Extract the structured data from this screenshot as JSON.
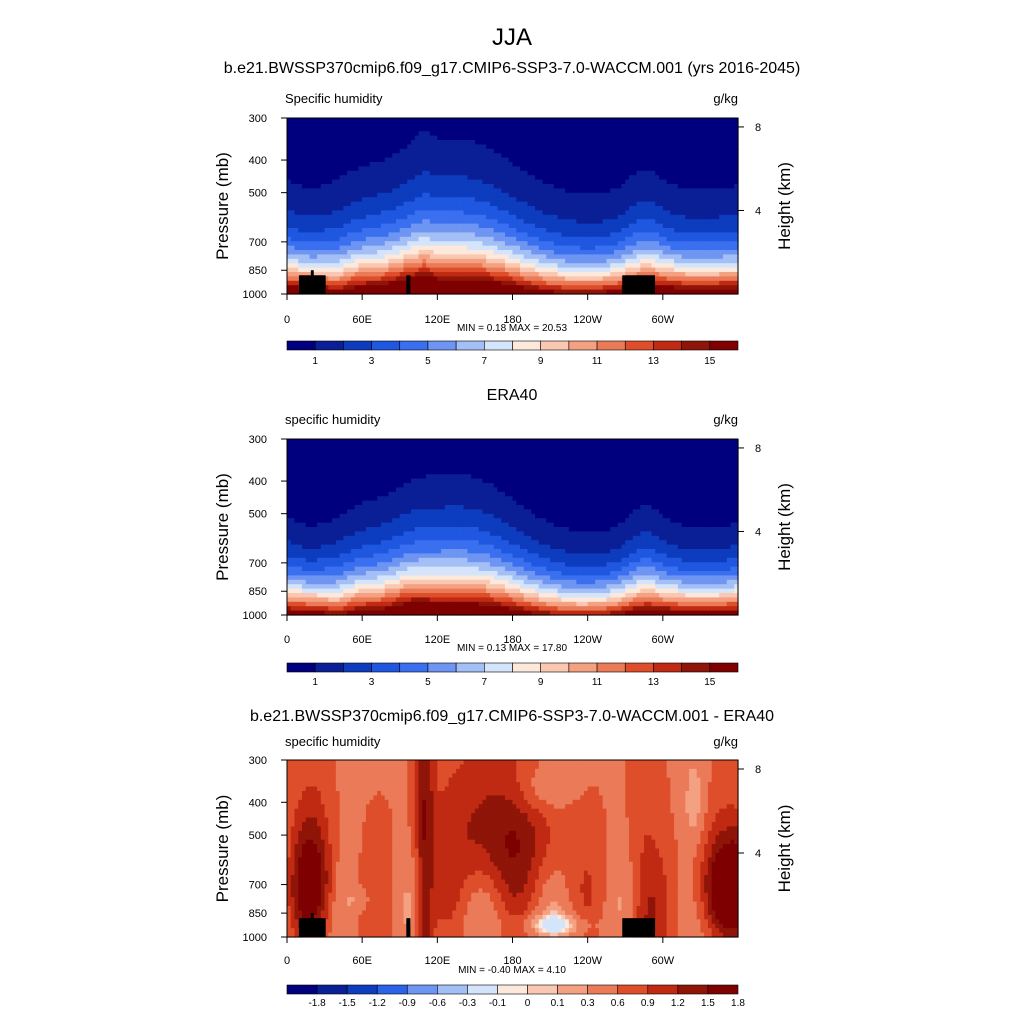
{
  "figure": {
    "season": "JJA",
    "colors": {
      "abs": [
        "#00007f",
        "#0a1f96",
        "#0d3cbe",
        "#1f57e0",
        "#3a70f0",
        "#6e95f2",
        "#a4bef6",
        "#d4e4fa",
        "#fde8dc",
        "#fac8b2",
        "#f4a182",
        "#ea7a58",
        "#df4e2b",
        "#c02a12",
        "#8f1508",
        "#7f0000"
      ],
      "diff": [
        "#00007f",
        "#0a1f96",
        "#0d3cbe",
        "#2c62e8",
        "#6e95f2",
        "#a4bef6",
        "#d4e4fa",
        "#fde8dc",
        "#fac8b2",
        "#f4a182",
        "#ea7a58",
        "#df4e2b",
        "#c02a12",
        "#8f1508",
        "#7f0000"
      ]
    }
  },
  "chart_data": [
    {
      "type": "heatmap",
      "title": "b.e21.BWSSP370cmip6.f09_g17.CMIP6-SSP3-7.0-WACCM.001 (yrs 2016-2045)",
      "left_label": "Specific humidity",
      "units": "g/kg",
      "ylabel": "Pressure (mb)",
      "y2label": "Height (km)",
      "x_ticks": [
        "0",
        "60E",
        "120E",
        "180",
        "120W",
        "60W"
      ],
      "x_tick_lon": [
        0,
        60,
        120,
        180,
        240,
        300
      ],
      "xlim": [
        0,
        360
      ],
      "y_ticks": [
        "300",
        "400",
        "500",
        "700",
        "850",
        "1000"
      ],
      "y_tick_p": [
        300,
        400,
        500,
        700,
        850,
        1000
      ],
      "ylim": [
        1000,
        300
      ],
      "y2_ticks": [
        "8",
        "4"
      ],
      "y2_tick_km": [
        8,
        4
      ],
      "stats": "MIN =  0.18  MAX =  20.53",
      "colorbar_labels": [
        "1",
        "3",
        "5",
        "7",
        "9",
        "11",
        "13",
        "15"
      ],
      "colorbar_levels": [
        1,
        2,
        3,
        4,
        5,
        6,
        7,
        8,
        9,
        10,
        11,
        12,
        13,
        14,
        15
      ],
      "field": "abs",
      "surface_p": [
        1000,
        1000,
        1000,
        1000,
        1000,
        1000,
        1000,
        1000,
        1000,
        1000,
        880,
        880,
        880,
        880,
        880,
        880,
        880,
        880,
        880,
        880,
        850,
        850,
        880,
        880,
        880,
        880,
        880,
        880,
        880,
        880,
        880,
        880,
        1000,
        1000,
        1000,
        1000,
        1000,
        1000,
        1000,
        1000,
        1000,
        1000,
        1000,
        1000,
        1000,
        1000,
        1000,
        1000,
        1000,
        1000,
        1000,
        1000,
        1000,
        1000,
        1000,
        1000,
        1000,
        1000,
        1000,
        1000,
        1000,
        1000,
        1000,
        1000,
        1000,
        1000,
        1000,
        1000,
        1000,
        1000,
        1000,
        1000,
        1000,
        1000,
        1000,
        1000,
        1000,
        1000,
        1000,
        1000,
        1000,
        1000,
        1000,
        1000,
        1000,
        1000,
        1000,
        1000,
        1000,
        1000,
        1000,
        1000,
        1000,
        1000,
        1000,
        1000,
        1000,
        1000,
        1000,
        1000,
        880,
        880,
        880,
        1000,
        1000,
        1000,
        1000,
        1000,
        1000,
        1000,
        1000,
        1000,
        1000,
        1000,
        1000,
        1000,
        1000,
        1000,
        1000,
        1000,
        1000,
        1000,
        1000,
        1000,
        1000,
        1000,
        1000,
        1000,
        1000,
        1000,
        1000,
        1000,
        1000,
        1000,
        1000,
        1000,
        1000,
        1000,
        1000,
        1000,
        1000,
        1000,
        1000,
        1000,
        1000,
        1000,
        1000,
        1000,
        1000,
        1000,
        1000,
        1000,
        1000,
        1000,
        1000,
        1000,
        1000,
        1000,
        1000,
        1000,
        1000,
        1000,
        1000,
        1000,
        1000,
        1000,
        1000,
        1000,
        1000,
        1000,
        1000,
        1000,
        1000,
        1000,
        1000,
        1000,
        1000,
        1000,
        1000,
        1000,
        1000,
        1000,
        1000,
        1000,
        1000,
        1000,
        1000,
        1000,
        1000,
        1000,
        1000,
        1000,
        1000,
        1000,
        1000,
        1000,
        1000,
        1000,
        1000,
        1000,
        1000,
        1000,
        1000,
        1000,
        1000,
        1000,
        1000,
        1000,
        1000,
        1000,
        1000,
        1000,
        1000,
        1000,
        1000,
        1000,
        1000,
        1000,
        1000,
        1000,
        1000,
        1000,
        1000,
        1000,
        1000,
        1000,
        1000,
        1000,
        1000,
        1000,
        1000,
        1000,
        1000,
        1000,
        1000,
        1000,
        1000,
        1000,
        1000,
        1000,
        1000,
        1000,
        1000,
        1000,
        1000,
        1000,
        1000,
        1000,
        1000,
        1000,
        1000,
        1000,
        1000,
        1000,
        1000,
        1000,
        1000,
        1000,
        1000,
        1000,
        1000,
        1000,
        1000,
        1000,
        1000,
        1000,
        1000,
        1000,
        1000,
        1000,
        1000,
        1000,
        1000,
        1000,
        1000,
        1000,
        1000,
        1000,
        1000,
        1000,
        1000,
        880,
        880,
        880,
        880,
        880,
        880,
        880,
        880,
        880,
        880,
        880,
        880,
        880,
        880,
        880,
        880,
        880,
        880,
        880,
        880,
        880,
        880,
        880,
        880,
        880,
        880,
        880,
        1000,
        1000,
        1000,
        1000,
        1000,
        1000,
        1000,
        1000,
        1000,
        1000,
        1000,
        1000,
        1000,
        1000,
        1000,
        1000,
        1000,
        1000,
        1000,
        1000,
        1000,
        1000,
        1000,
        1000,
        1000,
        1000,
        1000,
        1000,
        1000,
        1000,
        1000,
        1000,
        1000,
        1000,
        1000,
        1000,
        1000,
        1000,
        1000,
        1000,
        1000,
        1000,
        1000,
        1000,
        1000,
        1000,
        1000,
        1000,
        1000,
        1000,
        1000,
        1000,
        1000,
        1000,
        1000,
        1000,
        1000,
        1000,
        1000,
        1000,
        1000,
        1000,
        1000,
        1000,
        1000,
        1000,
        1000,
        1000,
        1000,
        1000
      ]
    },
    {
      "type": "heatmap",
      "title": "ERA40",
      "left_label": "specific humidity",
      "units": "g/kg",
      "ylabel": "Pressure (mb)",
      "y2label": "Height (km)",
      "x_ticks": [
        "0",
        "60E",
        "120E",
        "180",
        "120W",
        "60W"
      ],
      "x_tick_lon": [
        0,
        60,
        120,
        180,
        240,
        300
      ],
      "xlim": [
        0,
        360
      ],
      "y_ticks": [
        "300",
        "400",
        "500",
        "700",
        "850",
        "1000"
      ],
      "y_tick_p": [
        300,
        400,
        500,
        700,
        850,
        1000
      ],
      "ylim": [
        1000,
        300
      ],
      "y2_ticks": [
        "8",
        "4"
      ],
      "y2_tick_km": [
        8,
        4
      ],
      "stats": "MIN =  0.13  MAX =  17.80",
      "colorbar_labels": [
        "1",
        "3",
        "5",
        "7",
        "9",
        "11",
        "13",
        "15"
      ],
      "colorbar_levels": [
        1,
        2,
        3,
        4,
        5,
        6,
        7,
        8,
        9,
        10,
        11,
        12,
        13,
        14,
        15
      ],
      "field": "obs"
    },
    {
      "type": "heatmap",
      "title": "b.e21.BWSSP370cmip6.f09_g17.CMIP6-SSP3-7.0-WACCM.001 - ERA40",
      "left_label": "specific humidity",
      "units": "g/kg",
      "ylabel": "Pressure (mb)",
      "y2label": "Height (km)",
      "x_ticks": [
        "0",
        "60E",
        "120E",
        "180",
        "120W",
        "60W"
      ],
      "x_tick_lon": [
        0,
        60,
        120,
        180,
        240,
        300
      ],
      "xlim": [
        0,
        360
      ],
      "y_ticks": [
        "300",
        "400",
        "500",
        "700",
        "850",
        "1000"
      ],
      "y_tick_p": [
        300,
        400,
        500,
        700,
        850,
        1000
      ],
      "ylim": [
        1000,
        300
      ],
      "y2_ticks": [
        "8",
        "4"
      ],
      "y2_tick_km": [
        8,
        4
      ],
      "stats": "MIN = -0.40  MAX =  4.10",
      "colorbar_labels": [
        "-1.8",
        "-1.5",
        "-1.2",
        "-0.9",
        "-0.6",
        "-0.3",
        "-0.1",
        "0",
        "0.1",
        "0.3",
        "0.6",
        "0.9",
        "1.2",
        "1.5",
        "1.8"
      ],
      "colorbar_levels": [
        -1.8,
        -1.5,
        -1.2,
        -0.9,
        -0.6,
        -0.3,
        -0.1,
        0,
        0.1,
        0.3,
        0.6,
        0.9,
        1.2,
        1.5,
        1.8
      ],
      "field": "diff",
      "surface_from": 0
    }
  ]
}
